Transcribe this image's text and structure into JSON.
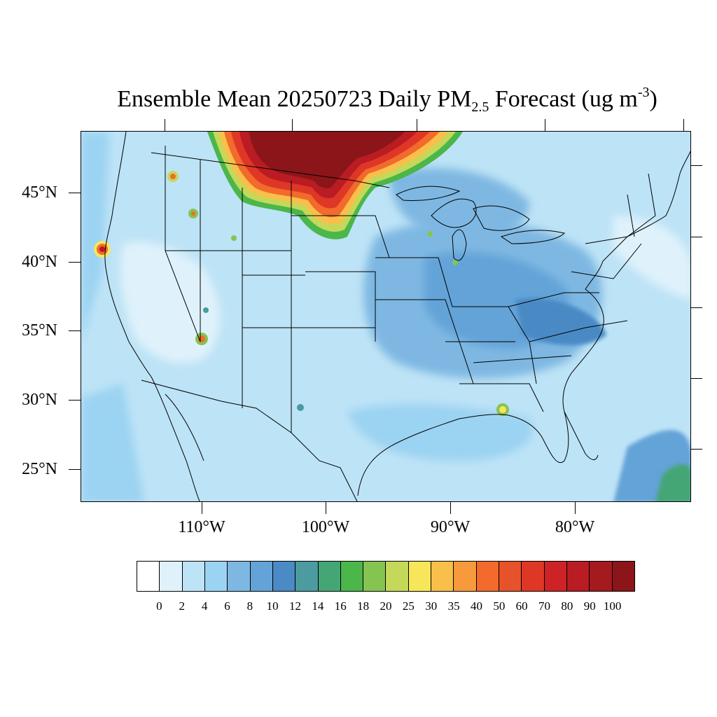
{
  "title": {
    "prefix": "Ensemble Mean 20250723 Daily PM",
    "sub": "2.5",
    "mid": " Forecast (ug m",
    "sup": "-3",
    "suffix": ")"
  },
  "axes": {
    "lat_labels": [
      "45°N",
      "40°N",
      "35°N",
      "30°N",
      "25°N"
    ],
    "lon_labels": [
      "110°W",
      "100°W",
      "90°W",
      "80°W"
    ]
  },
  "colorbar": {
    "levels": [
      "0",
      "2",
      "4",
      "6",
      "8",
      "10",
      "12",
      "14",
      "16",
      "18",
      "20",
      "25",
      "30",
      "35",
      "40",
      "50",
      "60",
      "70",
      "80",
      "90",
      "100"
    ],
    "colors": [
      "#ffffff",
      "#dff2fb",
      "#bde3f6",
      "#9bd3f2",
      "#7eb8e2",
      "#63a3d8",
      "#4a8ac5",
      "#4b9ba0",
      "#45a675",
      "#4bb64a",
      "#86c452",
      "#c4d85a",
      "#f8e65a",
      "#f8c04a",
      "#f79a3c",
      "#f26a2c",
      "#e8522a",
      "#df3726",
      "#cd2327",
      "#b91c22",
      "#a41a1f",
      "#8b1518"
    ]
  },
  "map": {
    "field": "Daily mean PM2.5 concentration (ug m-3)",
    "smoke_plume_region": "northern plains / southern Canada",
    "plume_peak_level": "100"
  }
}
